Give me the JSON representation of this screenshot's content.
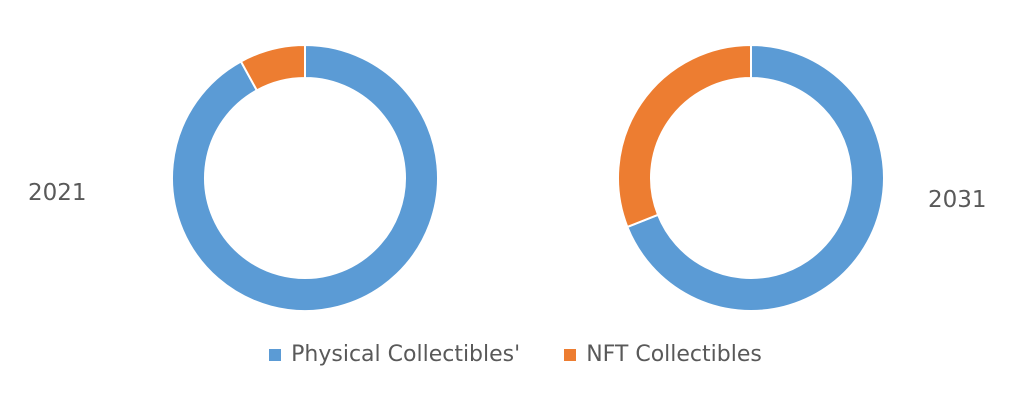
{
  "chart_data": [
    {
      "type": "donut",
      "title": "2021",
      "categories": [
        "Physical Collectibles'",
        "NFT Collectibles"
      ],
      "values": [
        92,
        8
      ],
      "colors": [
        "#5B9BD5",
        "#ED7D31"
      ]
    },
    {
      "type": "donut",
      "title": "2031",
      "categories": [
        "Physical Collectibles'",
        "NFT Collectibles"
      ],
      "values": [
        69,
        31
      ],
      "colors": [
        "#5B9BD5",
        "#ED7D31"
      ]
    }
  ],
  "legend": {
    "items": [
      {
        "label": "Physical Collectibles'",
        "color": "#5B9BD5"
      },
      {
        "label": "NFT Collectibles",
        "color": "#ED7D31"
      }
    ]
  }
}
